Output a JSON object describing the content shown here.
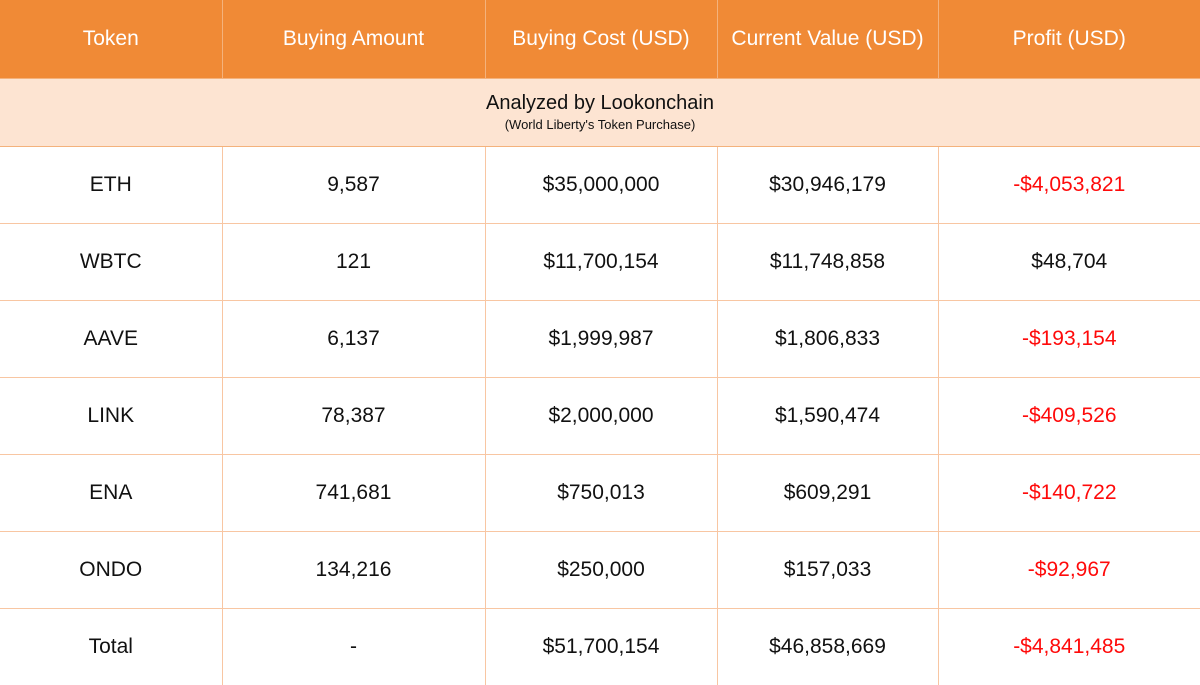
{
  "headers": {
    "token": "Token",
    "buying_amount": "Buying Amount",
    "buying_cost": "Buying Cost (USD)",
    "current_value": "Current Value (USD)",
    "profit": "Profit (USD)"
  },
  "caption": {
    "title": "Analyzed by Lookonchain",
    "subtitle": "(World Liberty's Token Purchase)"
  },
  "rows": [
    {
      "token": "ETH",
      "amount": "9,587",
      "cost": "$35,000,000",
      "value": "$30,946,179",
      "profit": "-$4,053,821",
      "negative": true
    },
    {
      "token": "WBTC",
      "amount": "121",
      "cost": "$11,700,154",
      "value": "$11,748,858",
      "profit": "$48,704",
      "negative": false
    },
    {
      "token": "AAVE",
      "amount": "6,137",
      "cost": "$1,999,987",
      "value": "$1,806,833",
      "profit": "-$193,154",
      "negative": true
    },
    {
      "token": "LINK",
      "amount": "78,387",
      "cost": "$2,000,000",
      "value": "$1,590,474",
      "profit": "-$409,526",
      "negative": true
    },
    {
      "token": "ENA",
      "amount": "741,681",
      "cost": "$750,013",
      "value": "$609,291",
      "profit": "-$140,722",
      "negative": true
    },
    {
      "token": "ONDO",
      "amount": "134,216",
      "cost": "$250,000",
      "value": "$157,033",
      "profit": "-$92,967",
      "negative": true
    },
    {
      "token": "Total",
      "amount": "-",
      "cost": "$51,700,154",
      "value": "$46,858,669",
      "profit": "-$4,841,485",
      "negative": true
    }
  ],
  "colors": {
    "header_bg": "#f08a36",
    "caption_bg": "#fde4d2",
    "negative_text": "#ff0a0a",
    "grid_line": "#f8c6a2"
  }
}
